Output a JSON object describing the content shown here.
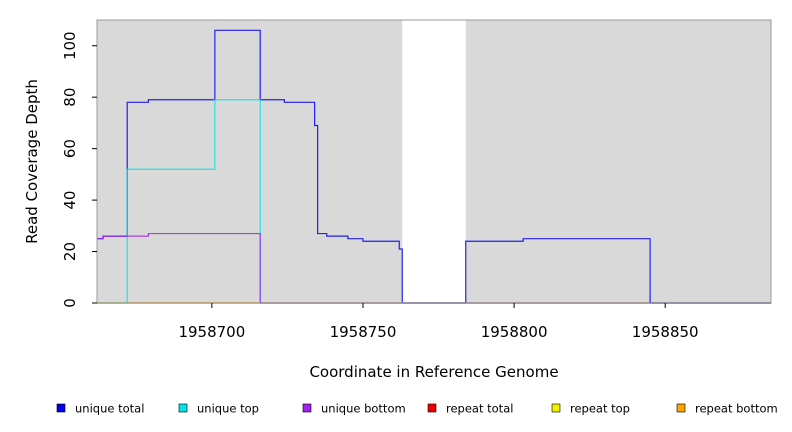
{
  "chart_data": {
    "type": "line",
    "xlabel": "Coordinate in Reference Genome",
    "ylabel": "Read Coverage Depth",
    "xlim": [
      1958662,
      1958885
    ],
    "ylim": [
      0,
      110
    ],
    "x_ticks": [
      1958700,
      1958750,
      1958800,
      1958850
    ],
    "x_tick_labels": [
      "1958700",
      "1958750",
      "1958800",
      "1958850"
    ],
    "y_ticks": [
      0,
      20,
      40,
      60,
      80,
      100
    ],
    "y_tick_labels": [
      "0",
      "20",
      "40",
      "60",
      "80",
      "100"
    ],
    "grid": false,
    "background": "#d9d9d9",
    "gap_region": [
      1958763,
      1958784
    ],
    "legend_position": "bottom",
    "series": [
      {
        "name": "unique total",
        "color": "#0000ee",
        "points": [
          [
            1958662,
            25
          ],
          [
            1958664,
            25
          ],
          [
            1958664,
            26
          ],
          [
            1958672,
            26
          ],
          [
            1958672,
            78
          ],
          [
            1958679,
            78
          ],
          [
            1958679,
            79
          ],
          [
            1958701,
            79
          ],
          [
            1958701,
            106
          ],
          [
            1958716,
            106
          ],
          [
            1958716,
            79
          ],
          [
            1958724,
            79
          ],
          [
            1958724,
            78
          ],
          [
            1958734,
            78
          ],
          [
            1958734,
            69
          ],
          [
            1958735,
            69
          ],
          [
            1958735,
            27
          ],
          [
            1958738,
            27
          ],
          [
            1958738,
            26
          ],
          [
            1958745,
            26
          ],
          [
            1958745,
            25
          ],
          [
            1958750,
            25
          ],
          [
            1958750,
            24
          ],
          [
            1958762,
            24
          ],
          [
            1958762,
            21
          ],
          [
            1958763,
            21
          ],
          [
            1958763,
            0
          ],
          [
            1958784,
            0
          ],
          [
            1958784,
            24
          ],
          [
            1958803,
            24
          ],
          [
            1958803,
            25
          ],
          [
            1958845,
            25
          ],
          [
            1958845,
            0
          ],
          [
            1958885,
            0
          ]
        ]
      },
      {
        "name": "unique top",
        "color": "#00e5e5",
        "points": [
          [
            1958662,
            0
          ],
          [
            1958672,
            0
          ],
          [
            1958672,
            52
          ],
          [
            1958701,
            52
          ],
          [
            1958701,
            79
          ],
          [
            1958716,
            79
          ],
          [
            1958716,
            0
          ],
          [
            1958885,
            0
          ]
        ]
      },
      {
        "name": "unique bottom",
        "color": "#a020f0",
        "points": [
          [
            1958662,
            25
          ],
          [
            1958664,
            25
          ],
          [
            1958664,
            26
          ],
          [
            1958679,
            26
          ],
          [
            1958679,
            27
          ],
          [
            1958716,
            27
          ],
          [
            1958716,
            0
          ],
          [
            1958885,
            0
          ]
        ]
      },
      {
        "name": "repeat total",
        "color": "#ee0000",
        "points": [
          [
            1958662,
            0
          ],
          [
            1958885,
            0
          ]
        ]
      },
      {
        "name": "repeat top",
        "color": "#eeee00",
        "points": [
          [
            1958662,
            0
          ],
          [
            1958885,
            0
          ]
        ]
      },
      {
        "name": "repeat bottom",
        "color": "#ffa500",
        "points": [
          [
            1958662,
            0
          ],
          [
            1958885,
            0
          ]
        ]
      }
    ]
  }
}
